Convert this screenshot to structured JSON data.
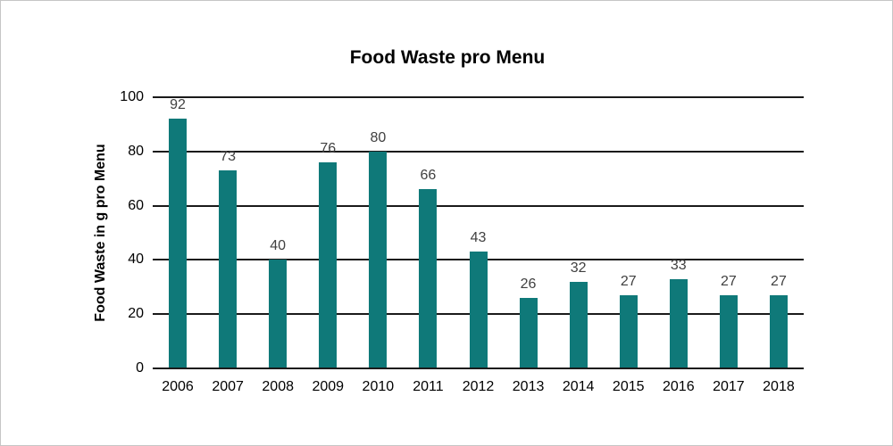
{
  "window": {
    "background_color": "#ffffff",
    "border_color": "#c6c6c6"
  },
  "chart_data": {
    "type": "bar",
    "title": "Food Waste pro Menu",
    "xlabel": "",
    "ylabel": "Food Waste in g pro Menu",
    "categories": [
      "2006",
      "2007",
      "2008",
      "2009",
      "2010",
      "2011",
      "2012",
      "2013",
      "2014",
      "2015",
      "2016",
      "2017",
      "2018"
    ],
    "values": [
      92,
      73,
      40,
      76,
      80,
      66,
      43,
      26,
      32,
      27,
      33,
      27,
      27
    ],
    "ylim": [
      0,
      100
    ],
    "yticks": [
      0,
      20,
      40,
      60,
      80,
      100
    ],
    "grid": "horizontal",
    "legend_position": "none",
    "bar_color": "#0f7979",
    "value_label_color": "#404040",
    "gridline_color": "#1a1a1a"
  }
}
